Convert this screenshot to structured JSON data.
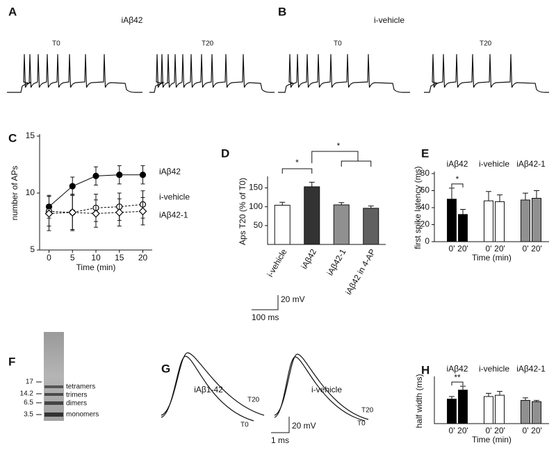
{
  "panels": {
    "A": {
      "letter": "A",
      "title": "iAβ42",
      "traces": [
        "T0",
        "T20"
      ]
    },
    "B": {
      "letter": "B",
      "title": "i-vehicle",
      "traces": [
        "T0",
        "T20"
      ]
    },
    "scale_AB": {
      "voltage": "20 mV",
      "time": "100 ms"
    },
    "F": {
      "letter": "F",
      "markers": [
        "17",
        "14.2",
        "6.5",
        "3.5"
      ],
      "bands": [
        "tetramers",
        "trimers",
        "dimers",
        "monomers"
      ]
    },
    "G": {
      "letter": "G",
      "groups": [
        {
          "title": "iAβ1-42",
          "labels": [
            "T20",
            "T0"
          ]
        },
        {
          "title": "i-vehicle",
          "labels": [
            "T20",
            "T0"
          ]
        }
      ],
      "voltage": "20 mV",
      "time": "1 ms"
    }
  },
  "chart_data": [
    {
      "letter": "C",
      "type": "line",
      "x": [
        0,
        5,
        10,
        15,
        20
      ],
      "xlim": [
        -2,
        22
      ],
      "xticks": [
        0,
        5,
        10,
        15,
        20
      ],
      "ylim": [
        5,
        15
      ],
      "yticks": [
        5,
        10,
        15
      ],
      "xlabel": "Time (min)",
      "ylabel": "number of APs",
      "series": [
        {
          "name": "iAβ42",
          "color": "#000000",
          "marker": "circle",
          "fill": "#000000",
          "values": [
            8.8,
            10.6,
            11.5,
            11.6,
            11.6
          ],
          "errors": [
            1.0,
            0.8,
            0.8,
            0.8,
            0.8
          ]
        },
        {
          "name": "i-vehicle",
          "color": "#000000",
          "marker": "circle",
          "fill": "#ffffff",
          "values": [
            8.4,
            8.3,
            8.7,
            8.8,
            9.0
          ],
          "errors": [
            1.3,
            1.5,
            1.2,
            1.2,
            1.2
          ]
        },
        {
          "name": "iAβ42-1",
          "color": "#000000",
          "marker": "diamond",
          "fill": "#ffffff",
          "values": [
            8.2,
            8.3,
            8.2,
            8.3,
            8.4
          ],
          "errors": [
            1.5,
            1.6,
            1.2,
            1.2,
            1.2
          ]
        }
      ]
    },
    {
      "letter": "D",
      "type": "bar",
      "categories": [
        "i-vehicle",
        "iAβ42",
        "iAβ42-1",
        "iAβ42 in 4-AP"
      ],
      "values": [
        104,
        153,
        105,
        96
      ],
      "errors": [
        8,
        12,
        6,
        6
      ],
      "colors": [
        "#ffffff",
        "#333333",
        "#909090",
        "#606060"
      ],
      "ylim": [
        0,
        175
      ],
      "yticks": [
        50,
        100,
        150
      ],
      "ylabel": "Aps T20 (% of T0)",
      "annotations": [
        "*",
        "*"
      ]
    },
    {
      "letter": "E",
      "type": "grouped_bar",
      "categories": [
        "0'",
        "20'"
      ],
      "xlabel": "Time (min)",
      "ylabel": "first spike latency (ms)",
      "ylim": [
        0,
        80
      ],
      "yticks": [
        0,
        20,
        40,
        60,
        80
      ],
      "series": [
        {
          "name": "iAβ42",
          "color": "#000000",
          "values": [
            50,
            32
          ],
          "errors": [
            13,
            6
          ]
        },
        {
          "name": "i-vehicle",
          "color": "#ffffff",
          "values": [
            48,
            47
          ],
          "errors": [
            11,
            8
          ]
        },
        {
          "name": "iAβ42-1",
          "color": "#909090",
          "values": [
            49,
            51
          ],
          "errors": [
            8,
            9
          ]
        }
      ],
      "annotations": [
        "*"
      ]
    },
    {
      "letter": "H",
      "type": "grouped_bar",
      "categories": [
        "0'",
        "20'"
      ],
      "xlabel": "Time (min)",
      "ylabel": "half width (ms)",
      "ylim": [
        0,
        3.5
      ],
      "series": [
        {
          "name": "iAβ42",
          "color": "#000000",
          "values": [
            1.9,
            2.6
          ],
          "errors": [
            0.2,
            0.3
          ]
        },
        {
          "name": "i-vehicle",
          "color": "#ffffff",
          "values": [
            2.1,
            2.2
          ],
          "errors": [
            0.25,
            0.3
          ]
        },
        {
          "name": "iAβ42-1",
          "color": "#909090",
          "values": [
            1.8,
            1.7
          ],
          "errors": [
            0.2,
            0.1
          ]
        }
      ],
      "annotations": [
        "**"
      ]
    }
  ]
}
